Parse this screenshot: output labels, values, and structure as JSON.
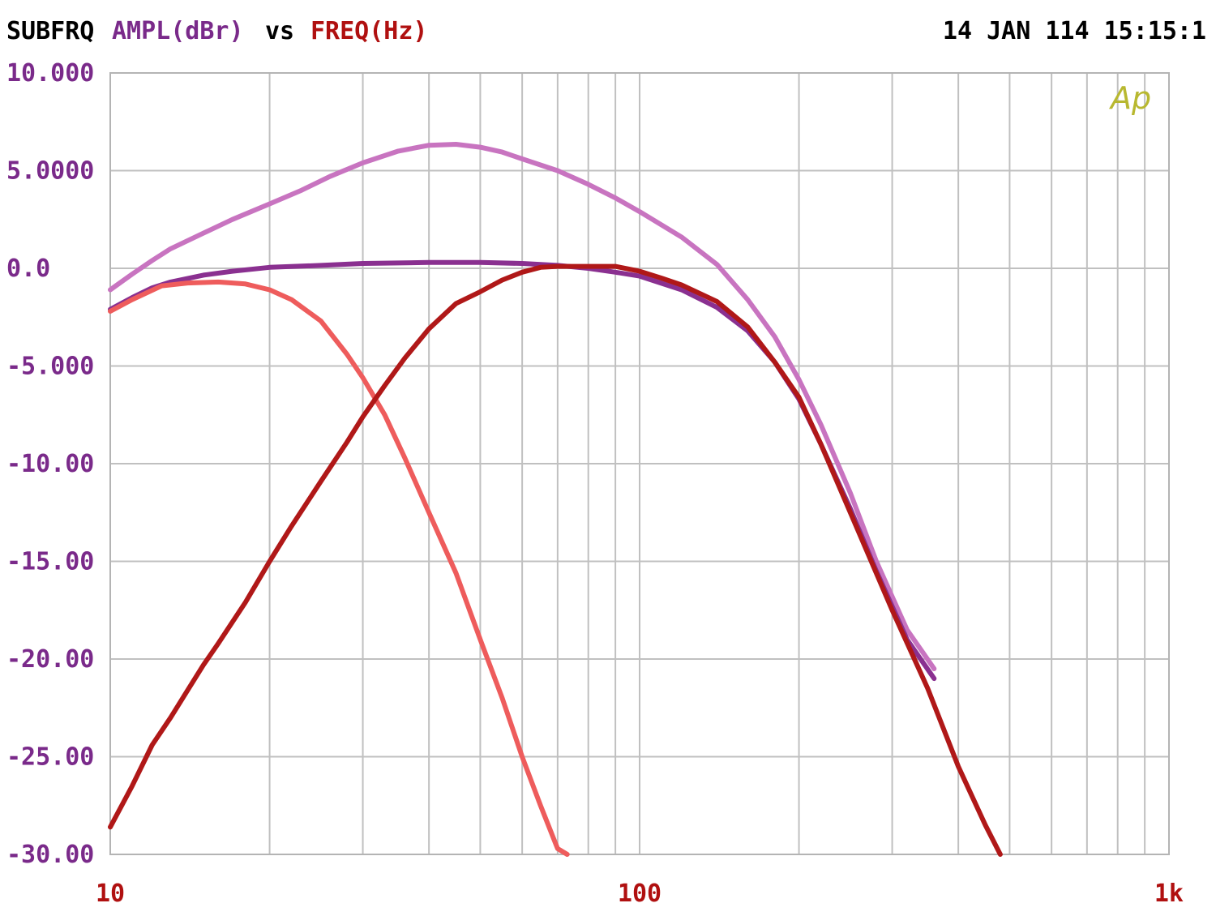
{
  "header": {
    "program": "SUBFRQ",
    "y_quantity": "AMPL(dBr)",
    "vs": "vs",
    "x_quantity": "FREQ(Hz)",
    "timestamp": "14 JAN 114 15:15:1"
  },
  "logo": {
    "text": "Ap"
  },
  "colors": {
    "header_text": "#000000",
    "y_axis_text": "#7a2a8a",
    "x_axis_text": "#b01010",
    "logo": "#b8b830"
  },
  "chart_data": {
    "type": "line",
    "x_scale": "log",
    "xlim": [
      10,
      1000
    ],
    "ylim": [
      -30,
      10
    ],
    "grid": true,
    "ytick_labels": [
      {
        "value": 10,
        "label": "10.000"
      },
      {
        "value": 5,
        "label": "5.0000"
      },
      {
        "value": 0,
        "label": "0.0"
      },
      {
        "value": -5,
        "label": "-5.000"
      },
      {
        "value": -10,
        "label": "-10.00"
      },
      {
        "value": -15,
        "label": "-15.00"
      },
      {
        "value": -20,
        "label": "-20.00"
      },
      {
        "value": -25,
        "label": "-25.00"
      },
      {
        "value": -30,
        "label": "-30.00"
      }
    ],
    "xtick_labels": [
      {
        "value": 10,
        "label": "10"
      },
      {
        "value": 100,
        "label": "100"
      },
      {
        "value": 1000,
        "label": "1k"
      }
    ],
    "series": [
      {
        "color": "#c874c0",
        "points": [
          [
            10,
            -1.1
          ],
          [
            11,
            -0.3
          ],
          [
            12,
            0.4
          ],
          [
            13,
            1.0
          ],
          [
            15,
            1.8
          ],
          [
            17,
            2.5
          ],
          [
            20,
            3.3
          ],
          [
            23,
            4.0
          ],
          [
            26,
            4.7
          ],
          [
            30,
            5.4
          ],
          [
            35,
            6.0
          ],
          [
            40,
            6.3
          ],
          [
            45,
            6.35
          ],
          [
            50,
            6.2
          ],
          [
            55,
            5.95
          ],
          [
            60,
            5.6
          ],
          [
            70,
            5.0
          ],
          [
            80,
            4.3
          ],
          [
            90,
            3.6
          ],
          [
            100,
            2.9
          ],
          [
            120,
            1.6
          ],
          [
            140,
            0.2
          ],
          [
            160,
            -1.6
          ],
          [
            180,
            -3.5
          ],
          [
            200,
            -5.7
          ],
          [
            220,
            -8.0
          ],
          [
            250,
            -11.5
          ],
          [
            280,
            -15.0
          ],
          [
            320,
            -18.5
          ],
          [
            360,
            -20.5
          ]
        ]
      },
      {
        "color": "#8a3090",
        "points": [
          [
            10,
            -2.1
          ],
          [
            11,
            -1.5
          ],
          [
            12,
            -1.0
          ],
          [
            13,
            -0.7
          ],
          [
            15,
            -0.35
          ],
          [
            17,
            -0.15
          ],
          [
            20,
            0.05
          ],
          [
            25,
            0.15
          ],
          [
            30,
            0.25
          ],
          [
            40,
            0.3
          ],
          [
            50,
            0.3
          ],
          [
            60,
            0.25
          ],
          [
            70,
            0.15
          ],
          [
            80,
            0.0
          ],
          [
            90,
            -0.2
          ],
          [
            100,
            -0.4
          ],
          [
            120,
            -1.1
          ],
          [
            140,
            -2.0
          ],
          [
            160,
            -3.2
          ],
          [
            180,
            -4.8
          ],
          [
            200,
            -6.7
          ],
          [
            220,
            -9.0
          ],
          [
            250,
            -12.3
          ],
          [
            280,
            -15.5
          ],
          [
            320,
            -19.0
          ],
          [
            360,
            -21.0
          ]
        ]
      },
      {
        "color": "#ee5c5c",
        "points": [
          [
            10,
            -2.2
          ],
          [
            11,
            -1.6
          ],
          [
            12.5,
            -0.9
          ],
          [
            14,
            -0.75
          ],
          [
            16,
            -0.7
          ],
          [
            18,
            -0.8
          ],
          [
            20,
            -1.1
          ],
          [
            22,
            -1.6
          ],
          [
            25,
            -2.7
          ],
          [
            28,
            -4.4
          ],
          [
            30,
            -5.6
          ],
          [
            33,
            -7.5
          ],
          [
            36,
            -9.7
          ],
          [
            40,
            -12.5
          ],
          [
            45,
            -15.6
          ],
          [
            50,
            -19.0
          ],
          [
            55,
            -22.0
          ],
          [
            60,
            -25.0
          ],
          [
            65,
            -27.5
          ],
          [
            70,
            -29.7
          ],
          [
            73,
            -30.0
          ]
        ]
      },
      {
        "color": "#b01818",
        "points": [
          [
            10,
            -28.6
          ],
          [
            11,
            -26.5
          ],
          [
            12,
            -24.4
          ],
          [
            13,
            -23.0
          ],
          [
            14,
            -21.6
          ],
          [
            15,
            -20.3
          ],
          [
            16,
            -19.2
          ],
          [
            18,
            -17.1
          ],
          [
            20,
            -15.0
          ],
          [
            22,
            -13.2
          ],
          [
            25,
            -10.9
          ],
          [
            28,
            -8.9
          ],
          [
            30,
            -7.6
          ],
          [
            33,
            -6.0
          ],
          [
            36,
            -4.6
          ],
          [
            40,
            -3.1
          ],
          [
            45,
            -1.8
          ],
          [
            50,
            -1.2
          ],
          [
            55,
            -0.6
          ],
          [
            60,
            -0.2
          ],
          [
            65,
            0.05
          ],
          [
            70,
            0.1
          ],
          [
            80,
            0.1
          ],
          [
            90,
            0.1
          ],
          [
            100,
            -0.15
          ],
          [
            110,
            -0.5
          ],
          [
            120,
            -0.85
          ],
          [
            140,
            -1.7
          ],
          [
            160,
            -3.0
          ],
          [
            180,
            -4.8
          ],
          [
            200,
            -6.6
          ],
          [
            220,
            -9.0
          ],
          [
            250,
            -12.5
          ],
          [
            300,
            -17.5
          ],
          [
            350,
            -21.5
          ],
          [
            400,
            -25.5
          ],
          [
            450,
            -28.5
          ],
          [
            480,
            -30.0
          ]
        ]
      }
    ]
  }
}
